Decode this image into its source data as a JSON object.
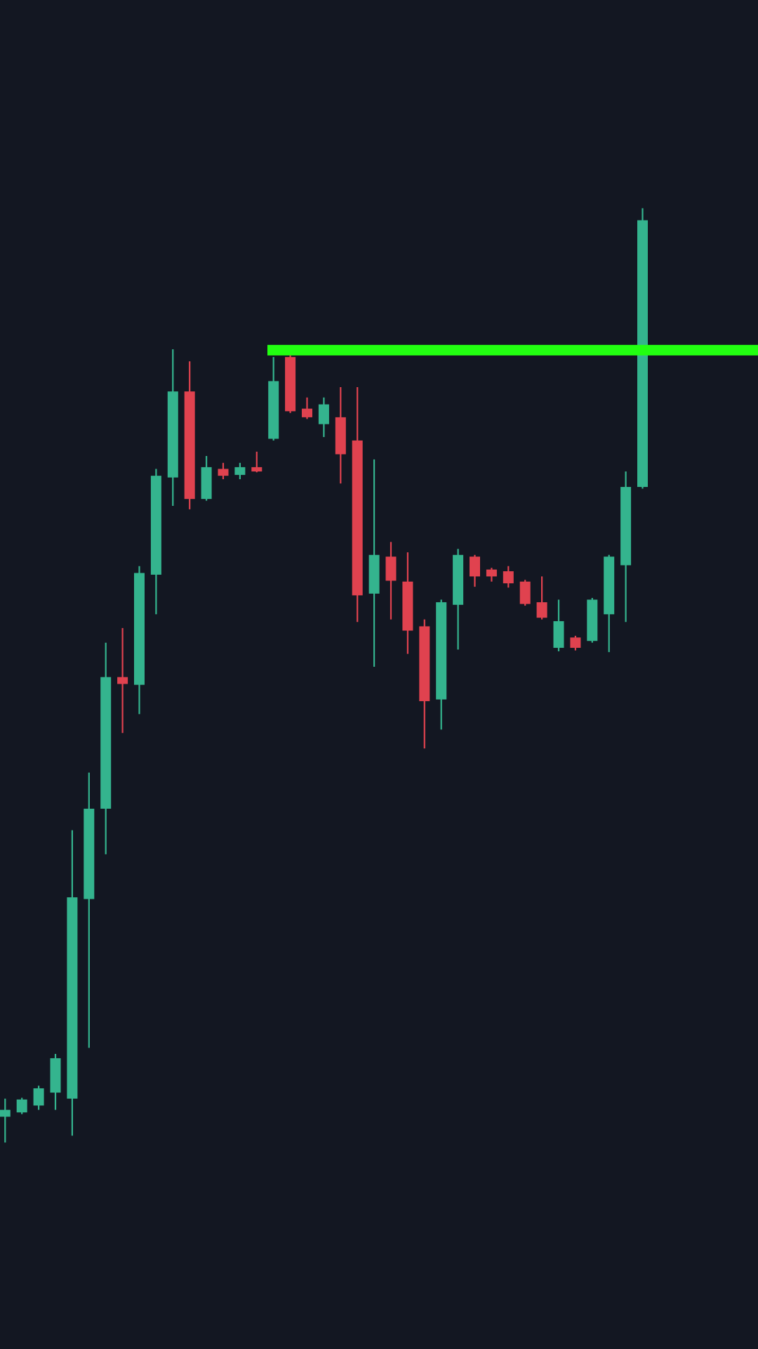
{
  "chart_data": {
    "type": "candlestick",
    "open": [
      302,
      307,
      315,
      330,
      323,
      555,
      660,
      813,
      804,
      932,
      1045,
      1145,
      1020,
      1055,
      1048,
      1057,
      1090,
      1185,
      1125,
      1107,
      1115,
      1088,
      910,
      953,
      924,
      872,
      787,
      897,
      953,
      938,
      936,
      924,
      900,
      847,
      859,
      855,
      886,
      943,
      1034
    ],
    "high": [
      323,
      324,
      338,
      375,
      635,
      702,
      853,
      870,
      942,
      1055,
      1194,
      1180,
      1070,
      1062,
      1062,
      1075,
      1185,
      1190,
      1138,
      1138,
      1150,
      1150,
      1066,
      970,
      958,
      880,
      903,
      962,
      955,
      940,
      942,
      926,
      930,
      903,
      861,
      905,
      955,
      1052,
      1358
    ],
    "low": [
      272,
      305,
      310,
      310,
      280,
      382,
      607,
      748,
      770,
      886,
      1012,
      1008,
      1018,
      1043,
      1043,
      1051,
      1088,
      1120,
      1113,
      1092,
      1038,
      877,
      825,
      880,
      840,
      730,
      752,
      845,
      918,
      924,
      917,
      896,
      880,
      843,
      844,
      853,
      842,
      877,
      1032
    ],
    "close": [
      310,
      322,
      335,
      370,
      557,
      660,
      813,
      805,
      934,
      1047,
      1145,
      1020,
      1057,
      1047,
      1057,
      1052,
      1157,
      1122,
      1115,
      1130,
      1072,
      908,
      955,
      925,
      867,
      785,
      900,
      955,
      930,
      930,
      922,
      898,
      882,
      878,
      847,
      903,
      953,
      1034,
      1344
    ],
    "up_color": "#34b48e",
    "down_color": "#e0424f",
    "level": 1193,
    "level_color": "#22ff11",
    "ylim": [
      32,
      1600
    ]
  }
}
